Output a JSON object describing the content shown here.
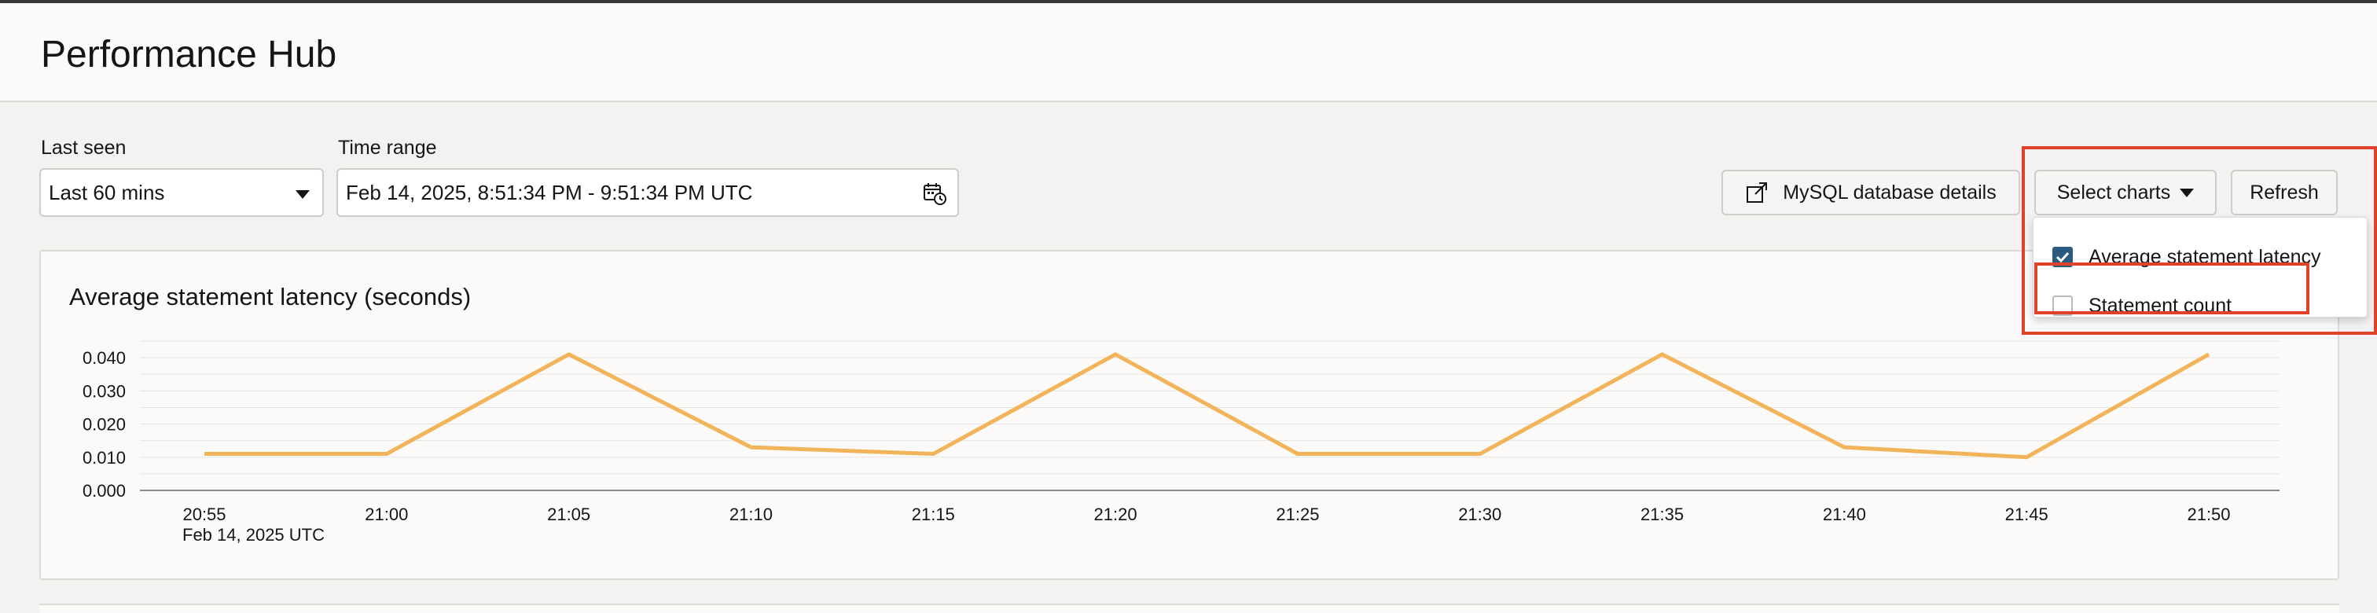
{
  "header": {
    "title": "Performance Hub"
  },
  "filters": {
    "last_seen_label": "Last seen",
    "last_seen_value": "Last 60 mins",
    "time_range_label": "Time range",
    "time_range_value": "Feb 14, 2025, 8:51:34 PM - 9:51:34 PM UTC"
  },
  "toolbar": {
    "mysql_details_label": "MySQL database details",
    "select_charts_label": "Select charts",
    "refresh_label": "Refresh"
  },
  "select_charts_menu": {
    "options": [
      {
        "label": "Average statement latency",
        "checked": true
      },
      {
        "label": "Statement count",
        "checked": false
      }
    ]
  },
  "colors": {
    "series_line": "#f2b45a",
    "checkbox_checked": "#2c5a7e",
    "highlight": "#e0412a"
  },
  "chart_data": {
    "type": "line",
    "title": "Average statement latency (seconds)",
    "x": [
      "20:55",
      "21:00",
      "21:05",
      "21:10",
      "21:15",
      "21:20",
      "21:25",
      "21:30",
      "21:35",
      "21:40",
      "21:45",
      "21:50"
    ],
    "x_sublabel": "Feb 14, 2025 UTC",
    "series": [
      {
        "values": [
          0.011,
          0.011,
          0.041,
          0.013,
          0.011,
          0.041,
          0.011,
          0.011,
          0.041,
          0.013,
          0.01,
          0.041
        ]
      }
    ],
    "yticks": [
      "0.000",
      "0.010",
      "0.020",
      "0.030",
      "0.040"
    ],
    "ylim": [
      0,
      0.045
    ],
    "grid": true
  }
}
